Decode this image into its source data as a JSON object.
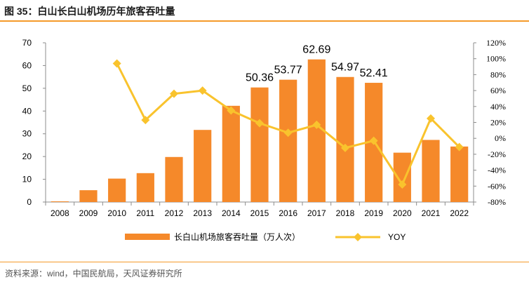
{
  "figure": {
    "title": "图 35：白山长白山机场历年旅客吞吐量",
    "source": "资料来源：wind，中国民航局，天风证券研究所"
  },
  "colors": {
    "bar": "#f5892a",
    "line": "#f9c32d",
    "rule": "#f59a2a",
    "axis": "#8c8c8c"
  },
  "chart_data": {
    "type": "bar+line",
    "categories": [
      "2008",
      "2009",
      "2010",
      "2011",
      "2012",
      "2013",
      "2014",
      "2015",
      "2016",
      "2017",
      "2018",
      "2019",
      "2020",
      "2021",
      "2022"
    ],
    "series": [
      {
        "name": "长白山机场旅客吞吐量（万人次）",
        "type": "bar",
        "axis": "left",
        "values": [
          0.3,
          5.2,
          10.3,
          12.7,
          19.8,
          31.7,
          42.3,
          50.36,
          53.77,
          62.69,
          54.97,
          52.41,
          21.7,
          27.3,
          24.4
        ]
      },
      {
        "name": "YOY",
        "type": "line",
        "axis": "right",
        "values": [
          null,
          null,
          94,
          23,
          56,
          60,
          35,
          19,
          7,
          17,
          -12,
          -3,
          -58,
          25,
          -11
        ]
      }
    ],
    "data_labels": [
      {
        "index": 7,
        "text": "50.36"
      },
      {
        "index": 8,
        "text": "53.77"
      },
      {
        "index": 9,
        "text": "62.69"
      },
      {
        "index": 10,
        "text": "54.97"
      },
      {
        "index": 11,
        "text": "52.41"
      }
    ],
    "left_axis": {
      "min": 0,
      "max": 70,
      "step": 10,
      "ticks": [
        "0",
        "10",
        "20",
        "30",
        "40",
        "50",
        "60",
        "70"
      ]
    },
    "right_axis": {
      "min": -80,
      "max": 120,
      "step": 20,
      "ticks": [
        "-80%",
        "-60%",
        "-40%",
        "-20%",
        "0%",
        "20%",
        "40%",
        "60%",
        "80%",
        "100%",
        "120%"
      ]
    },
    "legend": [
      {
        "label": "长白山机场旅客吞吐量（万人次）",
        "kind": "bar"
      },
      {
        "label": "YOY",
        "kind": "line"
      }
    ],
    "legend_position": "bottom"
  }
}
